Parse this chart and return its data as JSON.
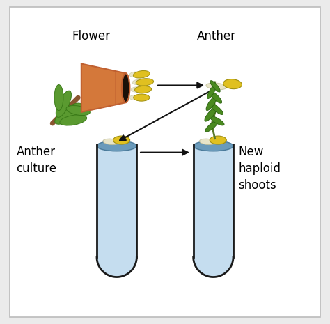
{
  "background_color": "#ebebeb",
  "inner_bg": "#ffffff",
  "labels": {
    "flower": "Flower",
    "anther": "Anther",
    "anther_culture": "Anther\nculture",
    "new_haploid": "New\nhaploid\nshots"
  },
  "label_fontsize": 12,
  "colors": {
    "flower_body": "#d4783a",
    "flower_rim": "#c06030",
    "flower_dark": "#1a1008",
    "stem_brown": "#8a5530",
    "leaf_green": "#5a9a30",
    "leaf_dark": "#3a7a18",
    "anther_yellow": "#e0c020",
    "anther_filament": "#e8e4c8",
    "tube_outline": "#1a1a1a",
    "tube_fill": "#c5ddef",
    "tube_medium": "#6a9aba",
    "plant_stem": "#5a7a2a",
    "plant_leaf": "#4a8a20",
    "arrow_color": "#111111"
  }
}
